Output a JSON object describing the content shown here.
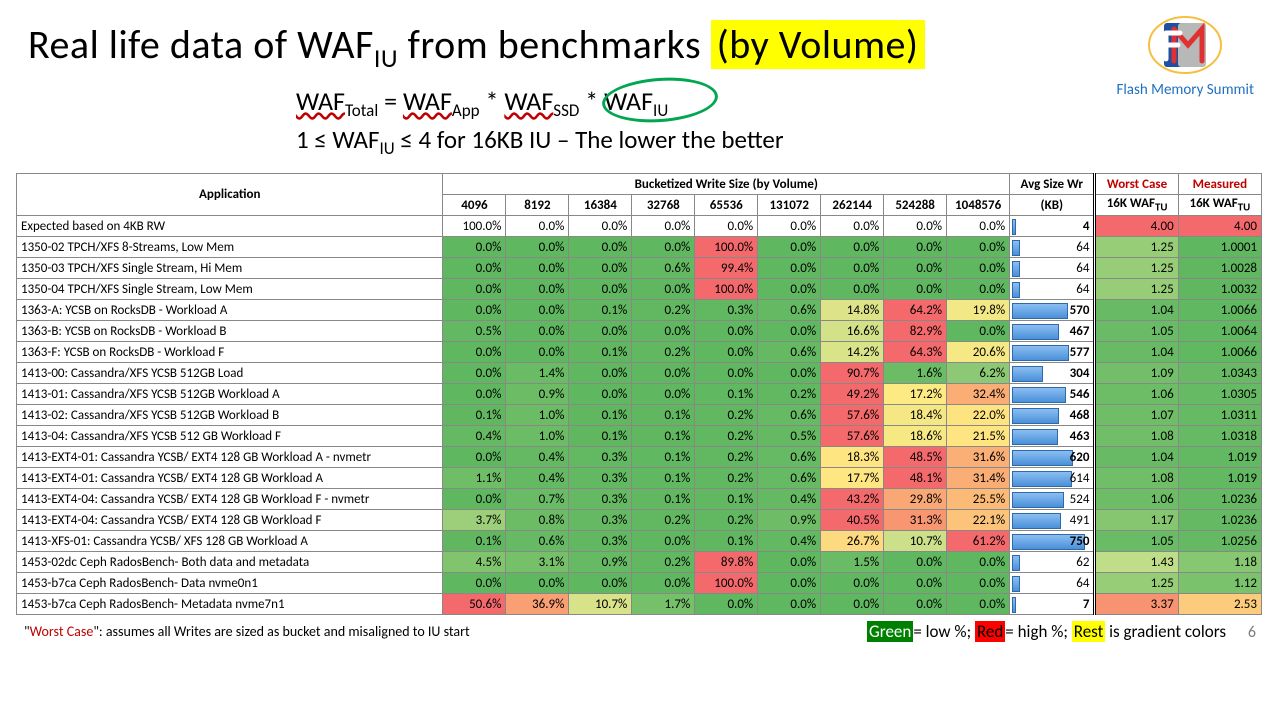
{
  "title_prefix": "Real life data of WAF",
  "title_sub": "IU",
  "title_mid": " from benchmarks ",
  "title_hi": "(by Volume)",
  "logo_text": "Flash Memory Summit",
  "formula_line1_a": "WAF",
  "formula_line1_a_sub": "Total",
  "formula_line1_eq": " = ",
  "formula_line1_b": "WAF",
  "formula_line1_b_sub": "App",
  "formula_line1_star1": " * ",
  "formula_line1_c": "WAF",
  "formula_line1_c_sub": "SSD",
  "formula_line1_star2": " * ",
  "formula_line1_d": "WAF",
  "formula_line1_d_sub": "IU",
  "formula_line2_a": "1 ≤ WAF",
  "formula_line2_sub": "IU",
  "formula_line2_b": " ≤ 4 for 16KB IU – The lower the better",
  "header_group": "Bucketized Write Size (by Volume)",
  "header_app": "Application",
  "header_buckets": [
    "4096",
    "8192",
    "16384",
    "32768",
    "65536",
    "131072",
    "262144",
    "524288",
    "1048576"
  ],
  "header_avg1": "Avg Size Wr",
  "header_avg2": "(KB)",
  "header_worst1": "Worst Case",
  "header_worst2_a": "16K WAF",
  "header_worst2_sub": "TU",
  "header_meas1": "Measured",
  "gradient": {
    "low": "#5fb760",
    "lowmid": "#c5df8b",
    "mid": "#feea83",
    "midhi": "#fbb977",
    "high": "#f4696c"
  },
  "avg_bar_max": 800,
  "rows": [
    {
      "app": "Expected based on 4KB RW",
      "v": [
        100.0,
        0.0,
        0.0,
        0.0,
        0.0,
        0.0,
        0.0,
        0.0,
        0.0
      ],
      "avg": 4,
      "avgBold": true,
      "wc": 4.0,
      "me": 4.0,
      "plain": true
    },
    {
      "app": "1350-02 TPCH/XFS 8-Streams, Low Mem",
      "v": [
        0.0,
        0.0,
        0.0,
        0.0,
        100.0,
        0.0,
        0.0,
        0.0,
        0.0
      ],
      "avg": 64,
      "wc": 1.25,
      "me": 1.0001
    },
    {
      "app": "1350-03 TPCH/XFS Single Stream, Hi Mem",
      "v": [
        0.0,
        0.0,
        0.0,
        0.6,
        99.4,
        0.0,
        0.0,
        0.0,
        0.0
      ],
      "avg": 64,
      "wc": 1.25,
      "me": 1.0028
    },
    {
      "app": "1350-04 TPCH/XFS Single Stream, Low Mem",
      "v": [
        0.0,
        0.0,
        0.0,
        0.0,
        100.0,
        0.0,
        0.0,
        0.0,
        0.0
      ],
      "avg": 64,
      "wc": 1.25,
      "me": 1.0032
    },
    {
      "app": "1363-A: YCSB on RocksDB - Workload A",
      "v": [
        0.0,
        0.0,
        0.1,
        0.2,
        0.3,
        0.6,
        14.8,
        64.2,
        19.8
      ],
      "avg": 570,
      "avgBold": true,
      "wc": 1.04,
      "me": 1.0066
    },
    {
      "app": "1363-B: YCSB on RocksDB - Workload B",
      "v": [
        0.5,
        0.0,
        0.0,
        0.0,
        0.0,
        0.0,
        16.6,
        82.9,
        0.0
      ],
      "avg": 467,
      "avgBold": true,
      "wc": 1.05,
      "me": 1.0064
    },
    {
      "app": "1363-F: YCSB on RocksDB - Workload F",
      "v": [
        0.0,
        0.0,
        0.1,
        0.2,
        0.0,
        0.6,
        14.2,
        64.3,
        20.6
      ],
      "avg": 577,
      "avgBold": true,
      "wc": 1.04,
      "me": 1.0066
    },
    {
      "app": "1413-00: Cassandra/XFS YCSB 512GB Load",
      "v": [
        0.0,
        1.4,
        0.0,
        0.0,
        0.0,
        0.0,
        90.7,
        1.6,
        6.2
      ],
      "avg": 304,
      "avgBold": true,
      "wc": 1.09,
      "me": 1.0343
    },
    {
      "app": "1413-01: Cassandra/XFS YCSB 512GB Workload A",
      "v": [
        0.0,
        0.9,
        0.0,
        0.0,
        0.1,
        0.2,
        49.2,
        17.2,
        32.4
      ],
      "avg": 546,
      "avgBold": true,
      "wc": 1.06,
      "me": 1.0305
    },
    {
      "app": "1413-02: Cassandra/XFS YCSB 512GB Workload B",
      "v": [
        0.1,
        1.0,
        0.1,
        0.1,
        0.2,
        0.6,
        57.6,
        18.4,
        22.0
      ],
      "avg": 468,
      "avgBold": true,
      "wc": 1.07,
      "me": 1.0311
    },
    {
      "app": "1413-04: Cassandra/XFS YCSB 512 GB Workload F",
      "v": [
        0.4,
        1.0,
        0.1,
        0.1,
        0.2,
        0.5,
        57.6,
        18.6,
        21.5
      ],
      "avg": 463,
      "avgBold": true,
      "wc": 1.08,
      "me": 1.0318
    },
    {
      "app": "1413-EXT4-01: Cassandra YCSB/ EXT4  128 GB Workload A - nvmetr",
      "v": [
        0.0,
        0.4,
        0.3,
        0.1,
        0.2,
        0.6,
        18.3,
        48.5,
        31.6
      ],
      "avg": 620,
      "avgBold": true,
      "wc": 1.04,
      "me": 1.019
    },
    {
      "app": "1413-EXT4-01: Cassandra YCSB/ EXT4  128 GB Workload A",
      "v": [
        1.1,
        0.4,
        0.3,
        0.1,
        0.2,
        0.6,
        17.7,
        48.1,
        31.4
      ],
      "avg": 614,
      "wc": 1.08,
      "me": 1.019
    },
    {
      "app": "1413-EXT4-04: Cassandra YCSB/ EXT4  128 GB Workload F - nvmetr",
      "v": [
        0.0,
        0.7,
        0.3,
        0.1,
        0.1,
        0.4,
        43.2,
        29.8,
        25.5
      ],
      "avg": 524,
      "wc": 1.06,
      "me": 1.0236
    },
    {
      "app": "1413-EXT4-04: Cassandra YCSB/ EXT4  128 GB Workload F",
      "v": [
        3.7,
        0.8,
        0.3,
        0.2,
        0.2,
        0.9,
        40.5,
        31.3,
        22.1
      ],
      "avg": 491,
      "wc": 1.17,
      "me": 1.0236
    },
    {
      "app": "1413-XFS-01: Cassandra YCSB/ XFS  128 GB Workload A",
      "v": [
        0.1,
        0.6,
        0.3,
        0.0,
        0.1,
        0.4,
        26.7,
        10.7,
        61.2
      ],
      "avg": 750,
      "avgBold": true,
      "wc": 1.05,
      "me": 1.0256
    },
    {
      "app": "1453-02dc Ceph RadosBench- Both data and metadata",
      "v": [
        4.5,
        3.1,
        0.9,
        0.2,
        89.8,
        0.0,
        1.5,
        0.0,
        0.0
      ],
      "avg": 62,
      "wc": 1.43,
      "me": 1.18
    },
    {
      "app": "1453-b7ca Ceph RadosBench- Data nvme0n1",
      "v": [
        0.0,
        0.0,
        0.0,
        0.0,
        100.0,
        0.0,
        0.0,
        0.0,
        0.0
      ],
      "avg": 64,
      "wc": 1.25,
      "me": 1.12
    },
    {
      "app": "1453-b7ca Ceph RadosBench- Metadata nvme7n1",
      "v": [
        50.6,
        36.9,
        10.7,
        1.7,
        0.0,
        0.0,
        0.0,
        0.0,
        0.0
      ],
      "avg": 7,
      "avgBold": true,
      "wc": 3.37,
      "me": 2.53
    }
  ],
  "wc_scale": {
    "min": 1.0,
    "max": 4.0
  },
  "me_scale": {
    "min": 1.0,
    "max": 4.0
  },
  "footnote_prefix": "\"",
  "footnote_wc": "Worst Case",
  "footnote_rest": "\": assumes all Writes are sized as bucket and misaligned to IU start",
  "legend_g": "Green",
  "legend_g2": "= low %; ",
  "legend_r": "Red",
  "legend_r2": "= high %; ",
  "legend_y": "Rest",
  "legend_y2": " is gradient colors",
  "page_num": "6"
}
